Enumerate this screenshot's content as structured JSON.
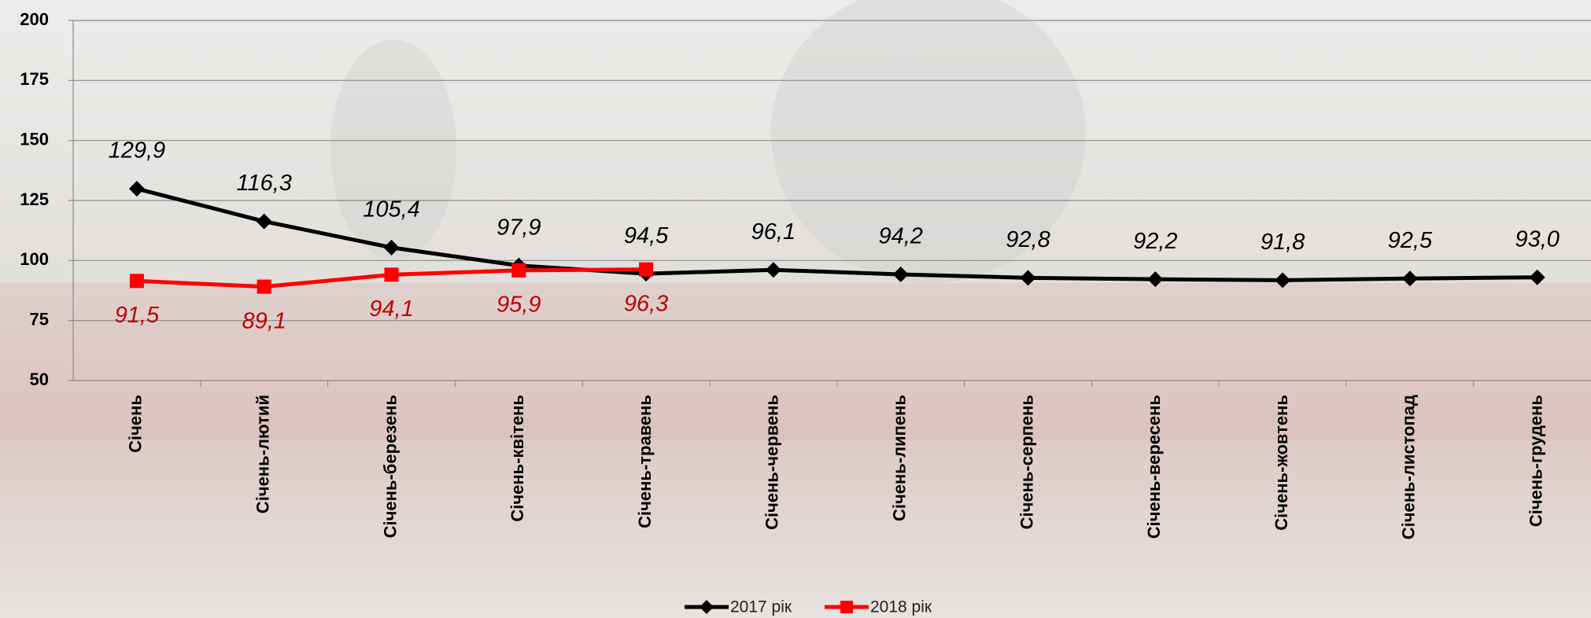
{
  "chart_data": {
    "type": "line",
    "categories": [
      "Січень",
      "Січень-лютий",
      "Січень-березень",
      "Січень-квітень",
      "Січень-травень",
      "Січень-червень",
      "Січень-липень",
      "Січень-серпень",
      "Січень-вересень",
      "Січень-жовтень",
      "Січень-листопад",
      "Січень-грудень"
    ],
    "series": [
      {
        "name": "2017 рік",
        "color": "#000000",
        "marker": "diamond",
        "values": [
          129.9,
          116.3,
          105.4,
          97.9,
          94.5,
          96.1,
          94.2,
          92.8,
          92.2,
          91.8,
          92.5,
          93.0
        ],
        "value_labels": [
          "129,9",
          "116,3",
          "105,4",
          "97,9",
          "94,5",
          "96,1",
          "94,2",
          "92,8",
          "92,2",
          "91,8",
          "92,5",
          "93,0"
        ]
      },
      {
        "name": "2018 рік",
        "color": "#ff0000",
        "label_color": "#c00000",
        "marker": "square",
        "values": [
          91.5,
          89.1,
          94.1,
          95.9,
          96.3,
          null,
          null,
          null,
          null,
          null,
          null,
          null
        ],
        "value_labels": [
          "91,5",
          "89,1",
          "94,1",
          "95,9",
          "96,3",
          null,
          null,
          null,
          null,
          null,
          null,
          null
        ]
      }
    ],
    "ylim": [
      50,
      200
    ],
    "yticks": [
      50,
      75,
      100,
      125,
      150,
      175,
      200
    ],
    "grid": true,
    "legend": "bottom"
  }
}
